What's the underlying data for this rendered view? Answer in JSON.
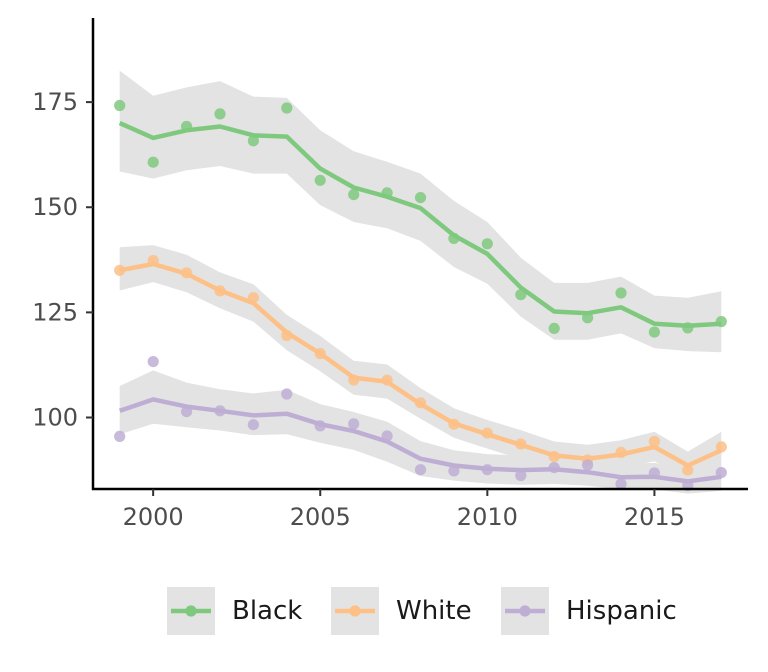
{
  "chart_data": {
    "type": "line",
    "title": "",
    "xlabel": "",
    "ylabel": "",
    "xlim": [
      1998.2,
      2017.8
    ],
    "ylim": [
      83,
      195
    ],
    "x_ticks": [
      2000,
      2005,
      2010,
      2015
    ],
    "y_ticks": [
      100,
      125,
      150,
      175
    ],
    "grid": false,
    "legend_position": "bottom",
    "confidence_band_color": "#e3e3e3",
    "x": [
      1999,
      2000,
      2001,
      2002,
      2003,
      2004,
      2005,
      2006,
      2007,
      2008,
      2009,
      2010,
      2011,
      2012,
      2013,
      2014,
      2015,
      2016,
      2017
    ],
    "series": [
      {
        "name": "Black",
        "color": "#7fc97f",
        "points": [
          174.2,
          160.7,
          169.2,
          172.2,
          165.8,
          173.6,
          156.4,
          153.0,
          153.4,
          152.3,
          142.6,
          141.3,
          129.2,
          121.2,
          123.7,
          129.6,
          120.3,
          121.3,
          122.8
        ],
        "smooth": [
          170.0,
          166.5,
          168.3,
          169.2,
          167.1,
          166.8,
          159.2,
          154.7,
          152.5,
          149.8,
          143.3,
          138.9,
          130.9,
          125.2,
          124.8,
          126.2,
          122.3,
          121.8,
          122.3
        ],
        "ci_lower": [
          158.5,
          156.8,
          158.8,
          159.8,
          158.0,
          158.0,
          150.5,
          146.5,
          145.0,
          142.0,
          135.8,
          131.8,
          124.0,
          118.5,
          118.5,
          120.0,
          116.5,
          115.8,
          115.5
        ],
        "ci_upper": [
          182.5,
          176.5,
          178.5,
          180.0,
          176.3,
          176.0,
          168.3,
          163.3,
          160.8,
          158.0,
          151.5,
          146.5,
          138.0,
          132.0,
          132.0,
          133.5,
          129.0,
          128.5,
          130.0
        ]
      },
      {
        "name": "White",
        "color": "#fdc086",
        "points": [
          135.0,
          137.3,
          134.4,
          130.1,
          128.5,
          119.5,
          115.2,
          108.9,
          108.9,
          103.5,
          98.4,
          96.3,
          93.7,
          90.7,
          89.9,
          91.7,
          94.3,
          87.5,
          93.0
        ],
        "smooth": [
          135.0,
          136.5,
          134.2,
          130.2,
          127.2,
          120.2,
          115.2,
          109.5,
          108.5,
          103.2,
          98.6,
          96.0,
          93.5,
          91.0,
          90.2,
          91.2,
          93.0,
          88.6,
          92.2
        ],
        "ci_lower": [
          130.2,
          132.2,
          129.8,
          126.0,
          122.8,
          116.0,
          111.0,
          105.4,
          104.5,
          99.7,
          95.2,
          92.6,
          90.1,
          87.8,
          87.0,
          88.0,
          89.6,
          85.6,
          88.0
        ],
        "ci_upper": [
          140.5,
          141.0,
          138.7,
          134.5,
          131.7,
          124.4,
          119.4,
          113.5,
          112.6,
          107.0,
          102.2,
          99.4,
          97.0,
          94.3,
          93.5,
          94.6,
          96.6,
          91.9,
          96.6
        ]
      },
      {
        "name": "Hispanic",
        "color": "#beaed4",
        "points": [
          95.5,
          113.3,
          101.4,
          101.6,
          98.3,
          105.6,
          98.0,
          98.5,
          95.6,
          87.6,
          87.3,
          87.6,
          86.2,
          88.1,
          88.7,
          84.2,
          86.8,
          83.8,
          86.9
        ],
        "smooth": [
          101.6,
          104.3,
          102.6,
          101.6,
          100.5,
          100.9,
          98.4,
          96.8,
          94.3,
          90.2,
          88.6,
          87.8,
          87.5,
          87.7,
          87.0,
          85.8,
          85.9,
          84.8,
          85.9
        ],
        "ci_lower": [
          96.0,
          98.5,
          97.7,
          96.9,
          95.8,
          96.0,
          94.0,
          92.3,
          89.5,
          86.1,
          85.0,
          84.3,
          84.0,
          84.2,
          83.8,
          82.9,
          82.9,
          81.9,
          82.6
        ],
        "ci_upper": [
          107.5,
          111.2,
          108.3,
          106.7,
          105.7,
          106.6,
          103.2,
          101.3,
          99.0,
          94.4,
          92.2,
          91.3,
          91.0,
          91.2,
          90.3,
          89.0,
          89.2,
          88.0,
          89.3
        ]
      }
    ]
  }
}
